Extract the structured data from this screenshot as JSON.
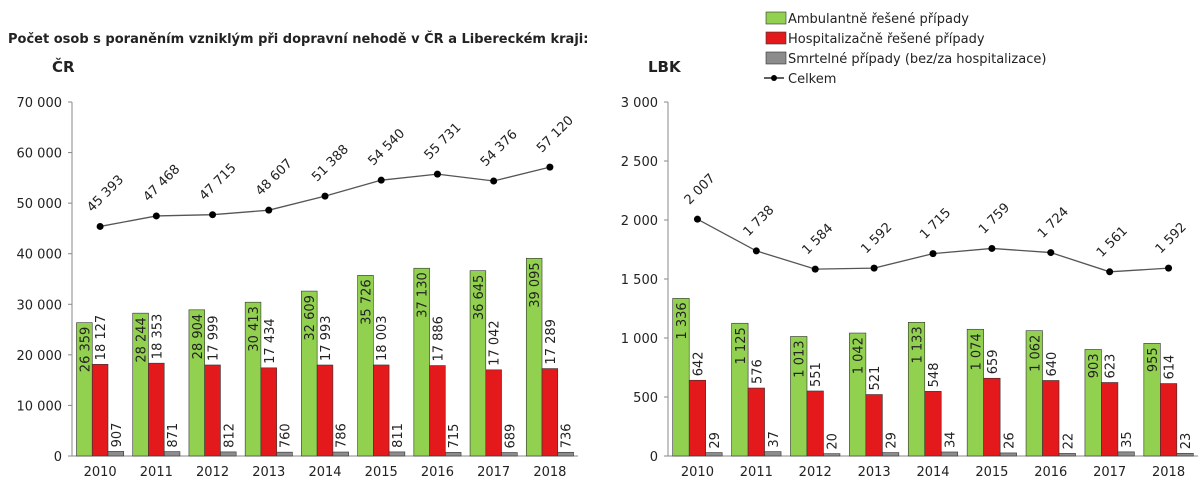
{
  "title": "Počet osob s poraněním vzniklým při dopravní nehodě v ČR a Libereckém kraji:",
  "chart_data": [
    {
      "type": "bar",
      "title": "ČR",
      "categories": [
        "2010",
        "2011",
        "2012",
        "2013",
        "2014",
        "2015",
        "2016",
        "2017",
        "2018"
      ],
      "ylim": [
        0,
        70000
      ],
      "yticks": [
        0,
        {
          "value": 10000,
          "label": "10 000"
        },
        {
          "value": 20000,
          "label": "20 000"
        },
        {
          "value": 30000,
          "label": "30 000"
        },
        {
          "value": 40000,
          "label": "40 000"
        },
        {
          "value": 50000,
          "label": "50 000"
        },
        {
          "value": 60000,
          "label": "60 000"
        },
        {
          "value": 70000,
          "label": "70 000"
        }
      ],
      "series": [
        {
          "name": "Ambulantně řešené případy",
          "color": "#92d050",
          "values": [
            26359,
            28244,
            28904,
            30413,
            32609,
            35726,
            37130,
            36645,
            39095
          ],
          "value_labels": [
            "26 359",
            "28 244",
            "28 904",
            "30 413",
            "32 609",
            "35 726",
            "37 130",
            "36 645",
            "39 095"
          ]
        },
        {
          "name": "Hospitalizačně řešené případy",
          "color": "#e3191c",
          "values": [
            18127,
            18353,
            17999,
            17434,
            17993,
            18003,
            17886,
            17042,
            17289
          ],
          "value_labels": [
            "18 127",
            "18 353",
            "17 999",
            "17 434",
            "17 993",
            "18 003",
            "17 886",
            "17 042",
            "17 289"
          ]
        },
        {
          "name": "Smrtelné případy (bez/za hospitalizace)",
          "color": "#8c8c8c",
          "values": [
            907,
            871,
            812,
            760,
            786,
            811,
            715,
            689,
            736
          ]
        },
        {
          "name": "Celkem",
          "type": "line",
          "color": "#000000",
          "values": [
            45393,
            47468,
            47715,
            48607,
            51388,
            54540,
            55731,
            54376,
            57120
          ],
          "value_labels": [
            "45 393",
            "47 468",
            "47 715",
            "48 607",
            "51 388",
            "54 540",
            "55 731",
            "54 376",
            "57 120"
          ]
        }
      ]
    },
    {
      "type": "bar",
      "title": "LBK",
      "categories": [
        "2010",
        "2011",
        "2012",
        "2013",
        "2014",
        "2015",
        "2016",
        "2017",
        "2018"
      ],
      "ylim": [
        0,
        3000
      ],
      "yticks": [
        0,
        500,
        {
          "value": 1000,
          "label": "1 000"
        },
        {
          "value": 1500,
          "label": "1 500"
        },
        {
          "value": 2000,
          "label": "2 000"
        },
        {
          "value": 2500,
          "label": "2 500"
        },
        {
          "value": 3000,
          "label": "3 000"
        }
      ],
      "series": [
        {
          "color": "#92d050",
          "values": [
            1336,
            1125,
            1013,
            1042,
            1133,
            1074,
            1062,
            903,
            955
          ],
          "value_labels": [
            "1 336",
            "1 125",
            "1 013",
            "1 042",
            "1 133",
            "1 074",
            "1 062",
            "903",
            "955"
          ]
        },
        {
          "color": "#e3191c",
          "values": [
            642,
            576,
            551,
            521,
            548,
            659,
            640,
            623,
            614
          ]
        },
        {
          "color": "#8c8c8c",
          "values": [
            29,
            37,
            20,
            29,
            34,
            26,
            22,
            35,
            23
          ]
        },
        {
          "type": "line",
          "color": "#000000",
          "values": [
            2007,
            1738,
            1584,
            1592,
            1715,
            1759,
            1724,
            1561,
            1592
          ],
          "value_labels": [
            "2 007",
            "1 738",
            "1 584",
            "1 592",
            "1 715",
            "1 759",
            "1 724",
            "1 561",
            "1 592"
          ]
        }
      ]
    }
  ]
}
